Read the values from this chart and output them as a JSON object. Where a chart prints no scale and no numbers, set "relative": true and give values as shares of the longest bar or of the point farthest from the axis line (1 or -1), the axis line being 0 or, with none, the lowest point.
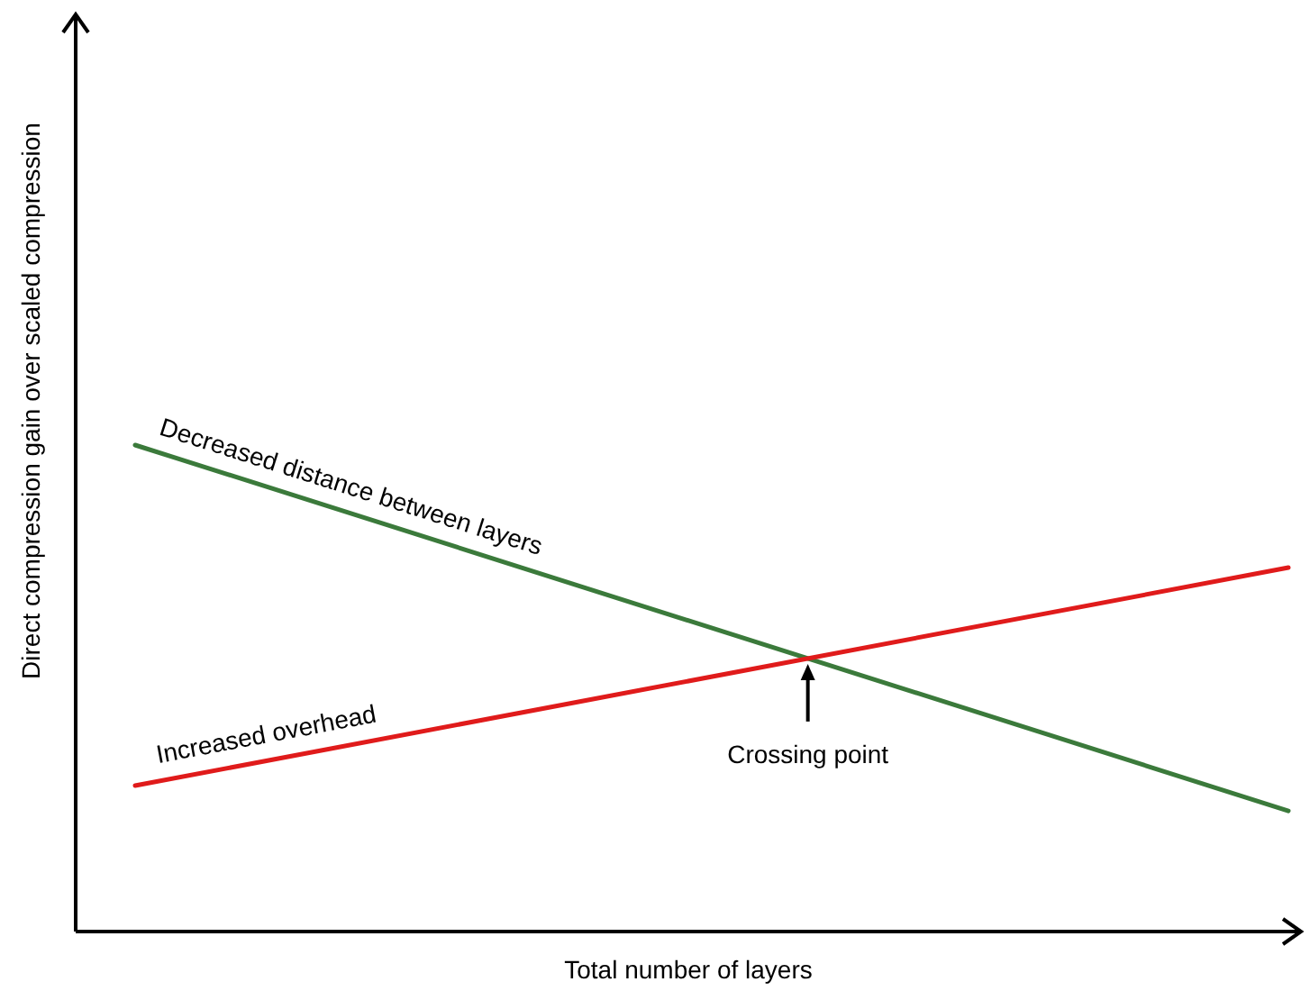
{
  "chart_data": {
    "type": "line",
    "relative": true,
    "xlabel": "Total number of layers",
    "ylabel": "Direct compression gain over scaled compression",
    "categories": [
      null,
      null
    ],
    "series": [
      {
        "name": "Decreased distance between layers",
        "color": "#3b7a3b",
        "values": [
          1,
          0.248
        ]
      },
      {
        "name": "Increased overhead",
        "color": "#e01b1b",
        "values": [
          0.3,
          0.748
        ]
      }
    ],
    "annotations": [
      "Crossing point"
    ]
  }
}
